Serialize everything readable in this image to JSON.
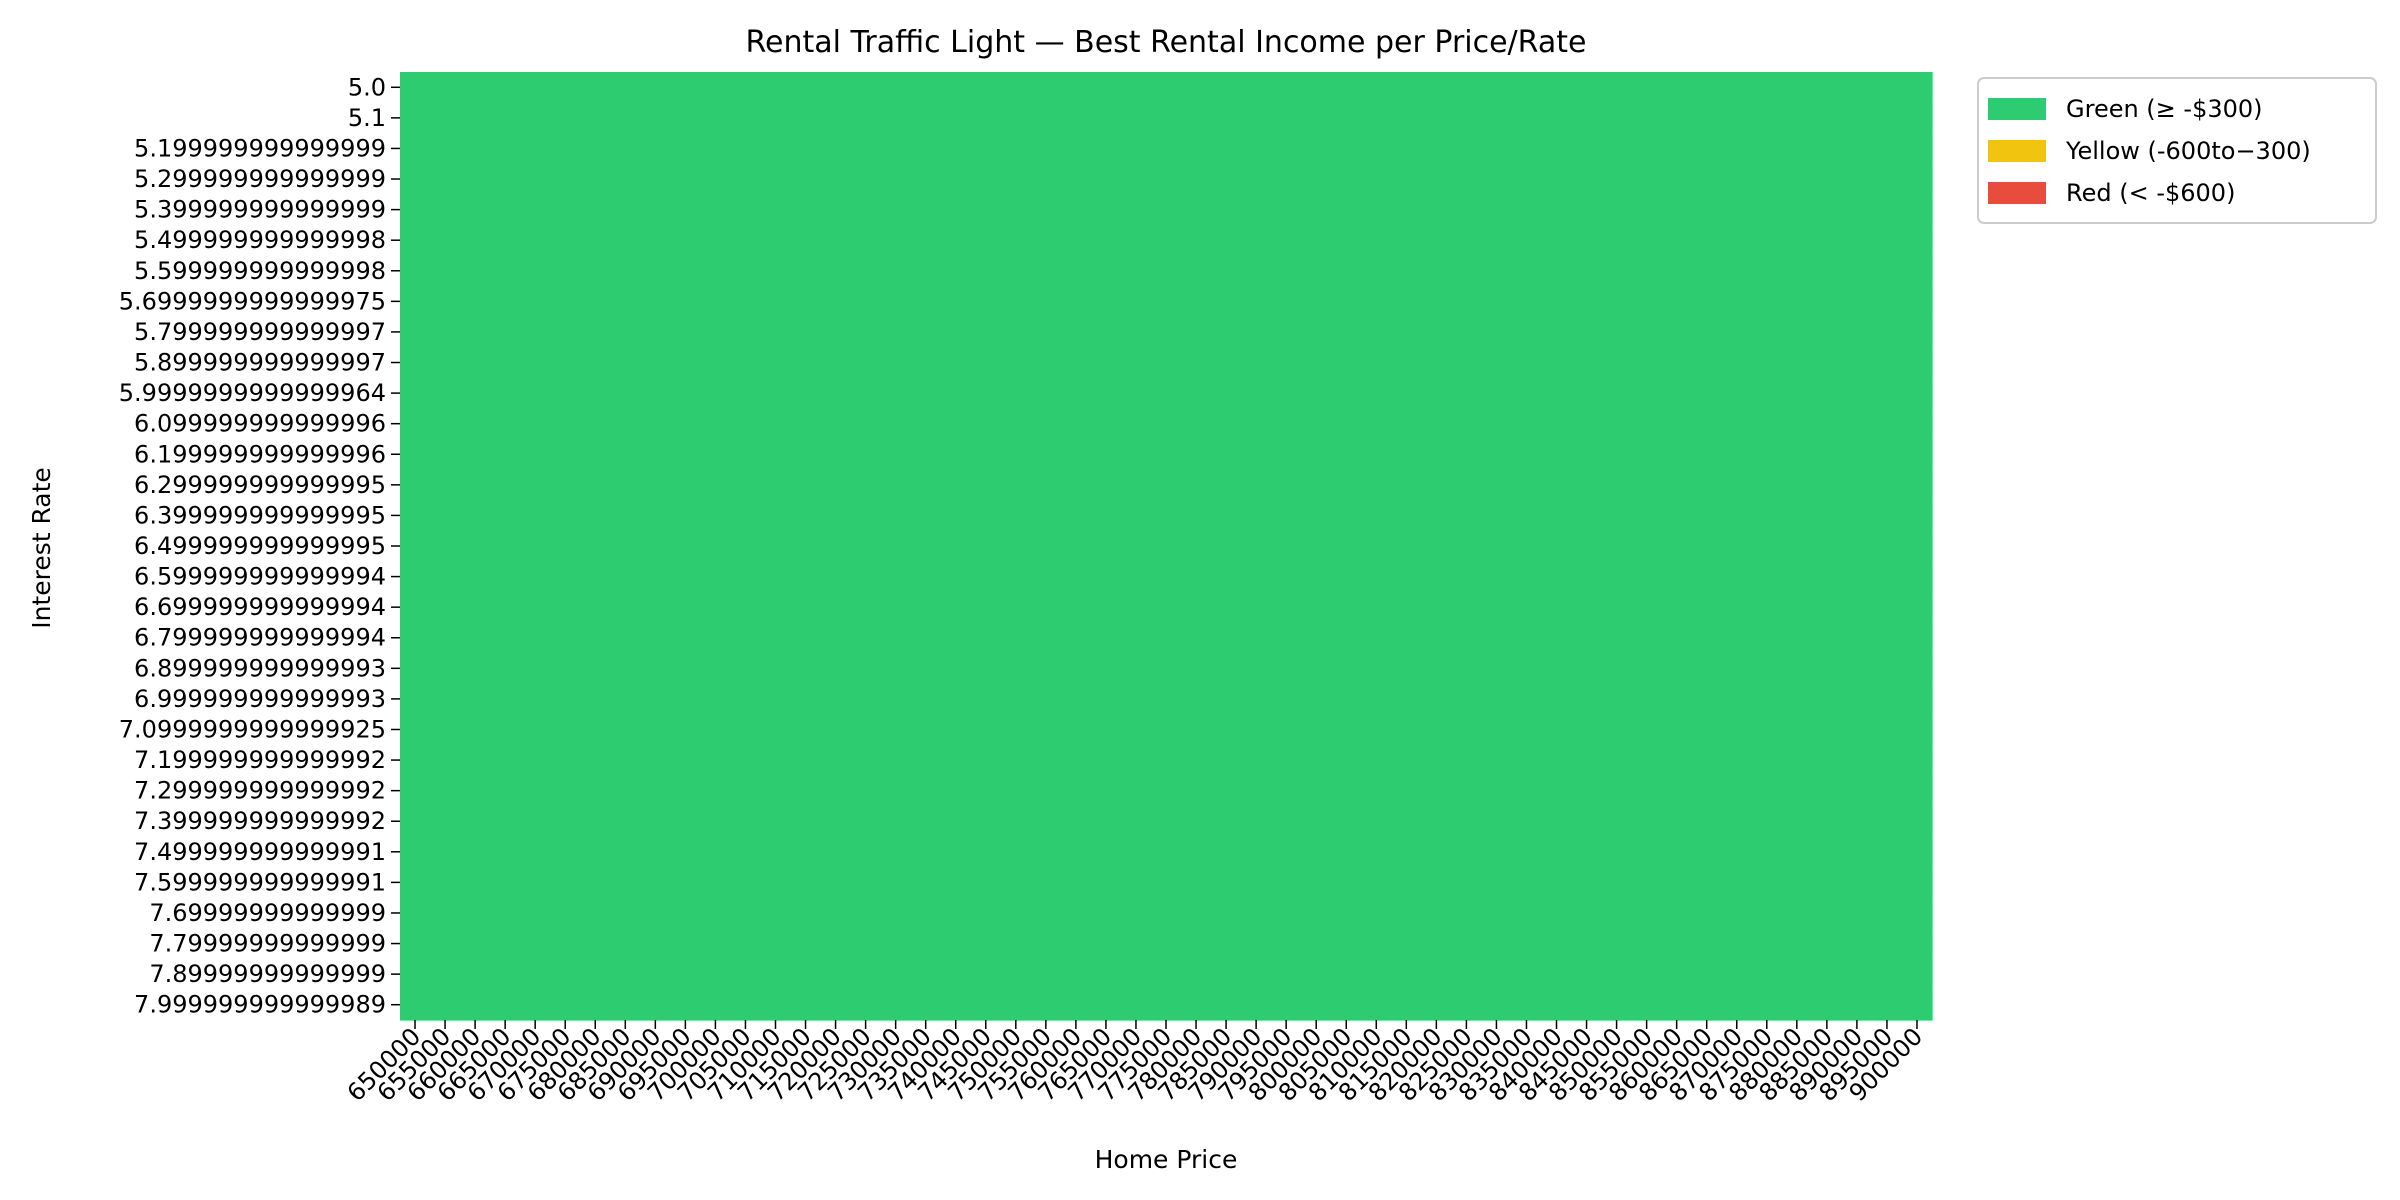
{
  "chart_data": {
    "type": "heatmap",
    "title": "Rental Traffic Light — Best Rental Income per Price/Rate",
    "xlabel": "Home Price",
    "ylabel": "Interest Rate",
    "x": [
      "650000",
      "655000",
      "660000",
      "665000",
      "670000",
      "675000",
      "680000",
      "685000",
      "690000",
      "695000",
      "700000",
      "705000",
      "710000",
      "715000",
      "720000",
      "725000",
      "730000",
      "735000",
      "740000",
      "745000",
      "750000",
      "755000",
      "760000",
      "765000",
      "770000",
      "775000",
      "780000",
      "785000",
      "790000",
      "795000",
      "800000",
      "805000",
      "810000",
      "815000",
      "820000",
      "825000",
      "830000",
      "835000",
      "840000",
      "845000",
      "850000",
      "855000",
      "860000",
      "865000",
      "870000",
      "875000",
      "880000",
      "885000",
      "890000",
      "895000",
      "900000"
    ],
    "y": [
      "5.0",
      "5.1",
      "5.199999999999999",
      "5.299999999999999",
      "5.399999999999999",
      "5.499999999999998",
      "5.599999999999998",
      "5.6999999999999975",
      "5.799999999999997",
      "5.899999999999997",
      "5.9999999999999964",
      "6.099999999999996",
      "6.199999999999996",
      "6.299999999999995",
      "6.399999999999995",
      "6.499999999999995",
      "6.599999999999994",
      "6.699999999999994",
      "6.799999999999994",
      "6.899999999999993",
      "6.999999999999993",
      "7.0999999999999925",
      "7.199999999999992",
      "7.299999999999992",
      "7.399999999999992",
      "7.499999999999991",
      "7.599999999999991",
      "7.69999999999999",
      "7.79999999999999",
      "7.89999999999999",
      "7.999999999999989"
    ],
    "cell_category": "green",
    "legend": {
      "placement": "outside-top-right",
      "entries": [
        {
          "key": "green",
          "label": "Green (≥ -$300)",
          "color": "#2ecc71"
        },
        {
          "key": "yellow",
          "label": "Yellow (-600to−300)",
          "color": "#f1c40f"
        },
        {
          "key": "red",
          "label": "Red (< -$600)",
          "color": "#e74c3c"
        }
      ]
    },
    "grid": false
  }
}
